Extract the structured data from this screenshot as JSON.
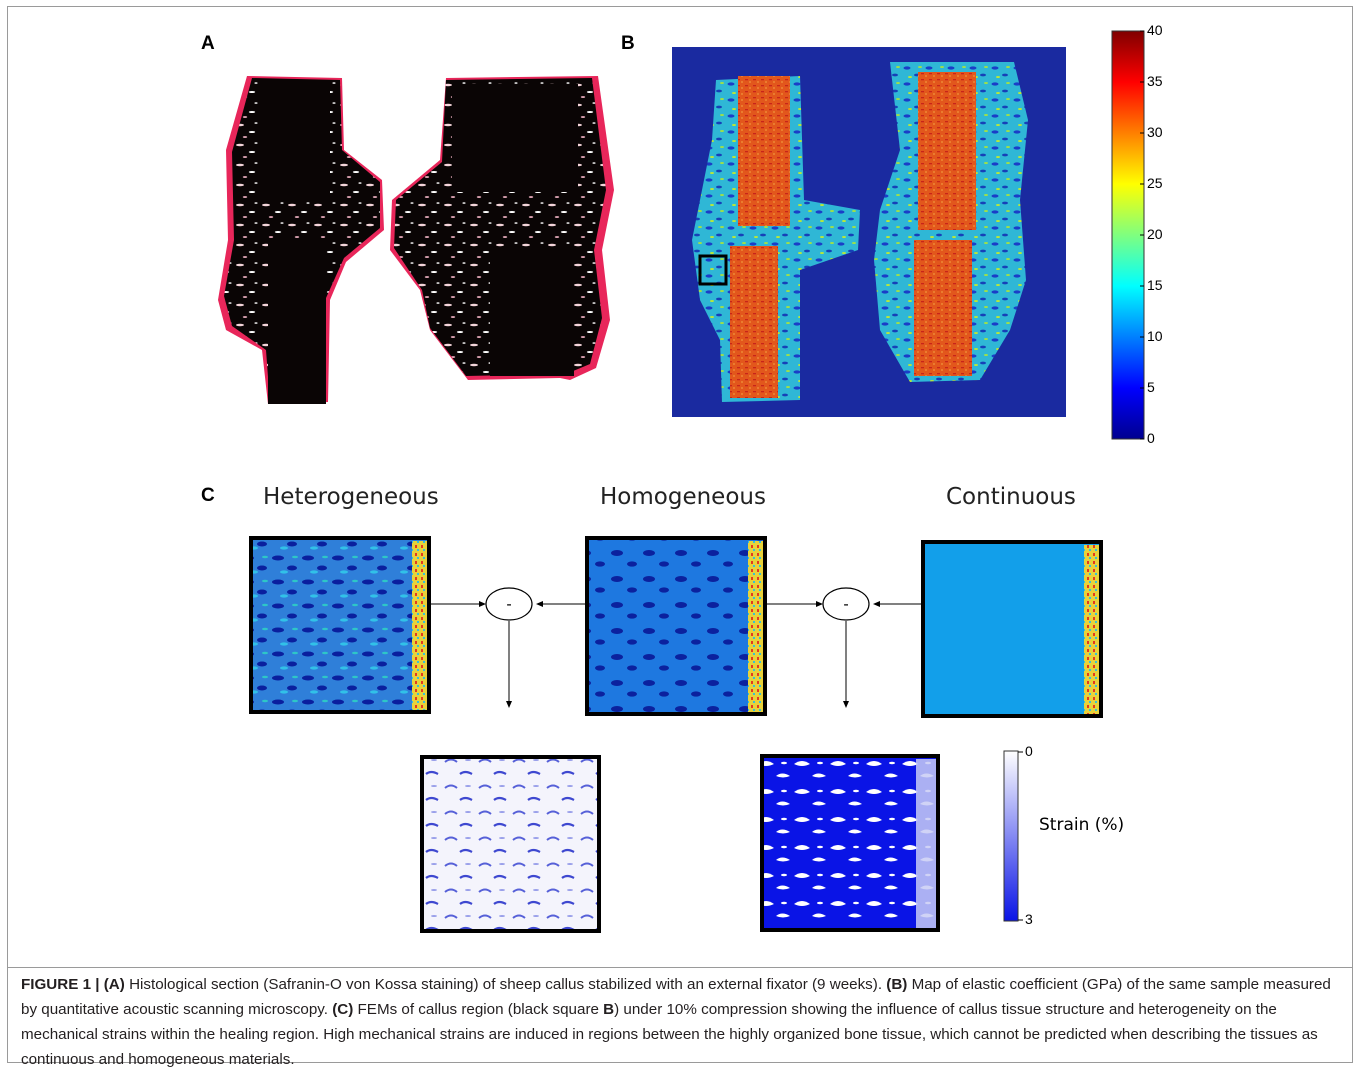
{
  "panels": {
    "a": {
      "letter": "A"
    },
    "b": {
      "letter": "B"
    },
    "c": {
      "letter": "C"
    }
  },
  "colorbar_elastic": {
    "ticks": [
      "40",
      "35",
      "30",
      "25",
      "20",
      "15",
      "10",
      "5",
      "0"
    ],
    "min": 0,
    "max": 40,
    "colormap": "jet"
  },
  "panel_c": {
    "models": [
      "Heterogeneous",
      "Homogeneous",
      "Continuous"
    ],
    "operator_symbol": "-",
    "strain_bar": {
      "label": "Strain (%)",
      "min_label": "0",
      "max_label": "3"
    }
  },
  "caption": {
    "figure_label": "FIGURE 1 |",
    "a_tag": "(A)",
    "a_text": " Histological section (Safranin-O von Kossa staining) of sheep callus stabilized with an external fixator (9 weeks). ",
    "b_tag": "(B)",
    "b_text": " Map of elastic coefficient (GPa) of the same sample measured by quantitative acoustic scanning microscopy. ",
    "c_tag": "(C)",
    "c_text1": " FEMs of callus region (black square ",
    "c_ref": "B",
    "c_text2": ") under 10% compression showing the influence of callus tissue structure and heterogeneity on the mechanical strains within the healing region. High mechanical strains are induced in regions between the highly organized bone tissue, which cannot be predicted when describing the tissues as continuous and homogeneous materials."
  },
  "colors": {
    "bone_black": "#0a0505",
    "stain_red": "#e8265a",
    "map_background": "#1a2aa0",
    "homogeneous_blue": "#1e78e0",
    "continuous_blue": "#129fea",
    "strain_dark": "#0a14e6"
  }
}
